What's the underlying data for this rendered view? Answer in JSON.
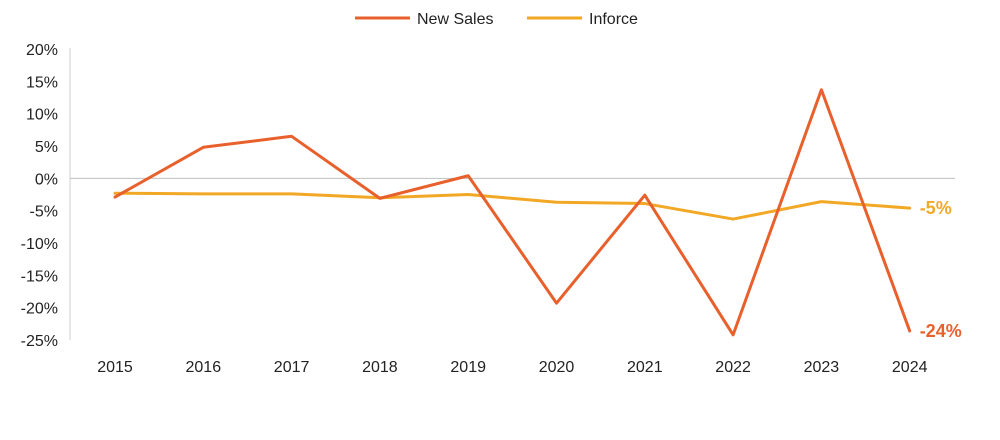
{
  "chart_data": {
    "type": "line",
    "title": "",
    "xlabel": "",
    "ylabel": "",
    "categories": [
      "2015",
      "2016",
      "2017",
      "2018",
      "2019",
      "2020",
      "2021",
      "2022",
      "2023",
      "2024"
    ],
    "ylim": [
      -25,
      20
    ],
    "yticks": [
      20,
      15,
      10,
      5,
      0,
      -5,
      -10,
      -15,
      -20,
      -25
    ],
    "ytick_labels": [
      "20%",
      "15%",
      "10%",
      "5%",
      "0%",
      "-5%",
      "-10%",
      "-15%",
      "-20%",
      "-25%"
    ],
    "grid": false,
    "legend_position": "top-center",
    "series": [
      {
        "name": "New Sales",
        "color": "#E8602C",
        "values": [
          -2.9,
          4.8,
          6.5,
          -3.1,
          0.4,
          -19.3,
          -2.6,
          -24.2,
          13.7,
          -23.6
        ],
        "end_label": "-24%"
      },
      {
        "name": "Inforce",
        "color": "#F2A825",
        "values": [
          -2.3,
          -2.4,
          -2.4,
          -3.0,
          -2.5,
          -3.7,
          -3.9,
          -6.3,
          -3.6,
          -4.6
        ],
        "end_label": "-5%"
      }
    ]
  }
}
